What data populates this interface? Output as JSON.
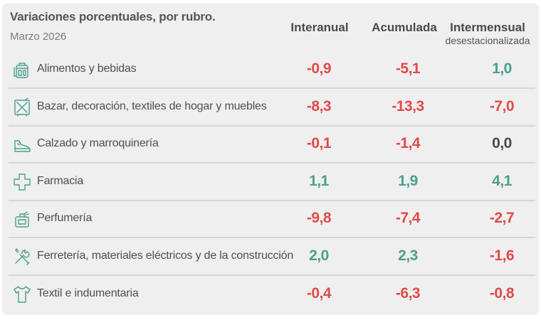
{
  "title": "Variaciones porcentuales, por rubro.",
  "subtitle": "Marzo 2026",
  "colors": {
    "negative": "#e24a4a",
    "positive": "#4aa08a",
    "zero": "#4a4a4a"
  },
  "chart_data": {
    "type": "table",
    "columns": [
      {
        "label": "Interanual",
        "sublabel": ""
      },
      {
        "label": "Acumulada",
        "sublabel": ""
      },
      {
        "label": "Intermensual",
        "sublabel": "desestacionalizada"
      }
    ],
    "rows": [
      {
        "icon": "grocery-bag-icon",
        "label": "Alimentos y bebidas",
        "values": [
          "-0,9",
          "-5,1",
          "1,0"
        ]
      },
      {
        "icon": "home-decor-icon",
        "label": "Bazar, decoración, textiles de hogar y muebles",
        "values": [
          "-8,3",
          "-13,3",
          "-7,0"
        ]
      },
      {
        "icon": "shoe-icon",
        "label": "Calzado y marroquinería",
        "values": [
          "-0,1",
          "-1,4",
          "0,0"
        ]
      },
      {
        "icon": "pharmacy-cross-icon",
        "label": "Farmacia",
        "values": [
          "1,1",
          "1,9",
          "4,1"
        ]
      },
      {
        "icon": "perfume-bottle-icon",
        "label": "Perfumería",
        "values": [
          "-9,8",
          "-7,4",
          "-2,7"
        ]
      },
      {
        "icon": "tools-icon",
        "label": "Ferretería, materiales eléctricos y de la construcción",
        "values": [
          "2,0",
          "2,3",
          "-1,6"
        ]
      },
      {
        "icon": "shirt-icon",
        "label": "Textil e indumentaria",
        "values": [
          "-0,4",
          "-6,3",
          "-0,8"
        ]
      }
    ]
  }
}
